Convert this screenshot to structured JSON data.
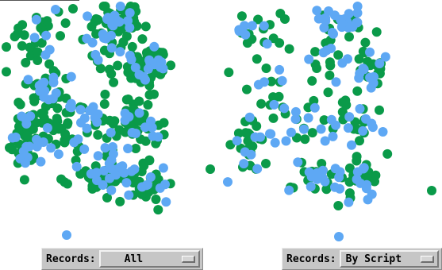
{
  "colors": {
    "green": "#0a9a49",
    "blue": "#5ea8f4"
  },
  "left_panel": {
    "records_label": "Records:",
    "records_value": "All"
  },
  "right_panel": {
    "records_label": "Records:",
    "records_value": "By Script"
  }
}
